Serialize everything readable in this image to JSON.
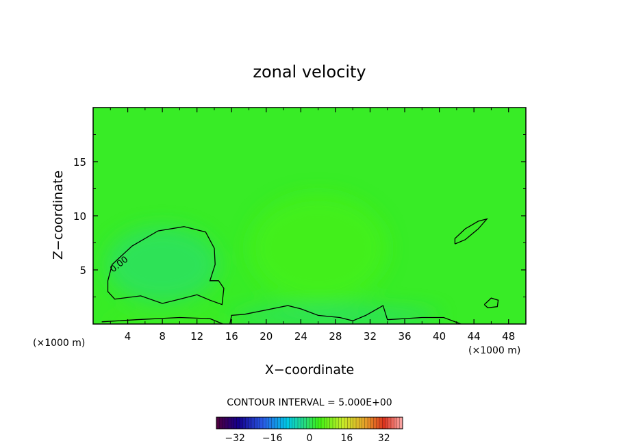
{
  "chart_data": {
    "type": "heatmap",
    "title": "zonal velocity",
    "xlabel": "X−coordinate",
    "ylabel": "Z−coordinate",
    "x_unit_label": "(×1000 m)",
    "z_unit_label": "(×1000 m)",
    "xlim": [
      0,
      50
    ],
    "ylim": [
      0,
      20
    ],
    "x_ticks": [
      4,
      8,
      12,
      16,
      20,
      24,
      28,
      32,
      36,
      40,
      44,
      48
    ],
    "x_tick_labels": [
      "4",
      "8",
      "12",
      "16",
      "20",
      "24",
      "28",
      "32",
      "36",
      "40",
      "44",
      "48"
    ],
    "y_ticks": [
      5,
      10,
      15
    ],
    "y_tick_labels": [
      "5",
      "10",
      "15"
    ],
    "contour_interval_text": "CONTOUR INTERVAL = 5.000E+00",
    "contour_label": "0.00",
    "colorbar": {
      "range": [
        -40,
        40
      ],
      "ticks": [
        -32,
        -16,
        0,
        16,
        32
      ],
      "tick_labels": [
        "−32",
        "−16",
        "0",
        "16",
        "32"
      ]
    },
    "background_value": 3,
    "field_regions": [
      {
        "x": [
          1.5,
          14.5
        ],
        "z": [
          2,
          9
        ],
        "value": -0.5
      },
      {
        "x": [
          16,
          40
        ],
        "z": [
          0,
          1.5
        ],
        "value": -1.5
      },
      {
        "x": [
          1,
          15
        ],
        "z": [
          0,
          0.3
        ],
        "value": 6
      },
      {
        "x": [
          18,
          34
        ],
        "z": [
          2,
          12
        ],
        "value": 4.5
      }
    ],
    "contour_zero_lines": [
      [
        [
          1.7,
          4.0
        ],
        [
          2.2,
          5.5
        ],
        [
          4.5,
          7.2
        ],
        [
          7.5,
          8.6
        ],
        [
          10.5,
          9.0
        ],
        [
          13.0,
          8.5
        ],
        [
          14.0,
          7.0
        ],
        [
          14.1,
          5.5
        ],
        [
          13.5,
          4.0
        ],
        [
          14.5,
          4.0
        ],
        [
          15.1,
          3.3
        ],
        [
          14.9,
          1.8
        ],
        [
          13.5,
          2.2
        ],
        [
          12.0,
          2.7
        ],
        [
          10.0,
          2.3
        ],
        [
          8.0,
          1.9
        ],
        [
          5.5,
          2.6
        ],
        [
          2.5,
          2.3
        ],
        [
          1.7,
          3.0
        ],
        [
          1.7,
          4.0
        ]
      ],
      [
        [
          41.8,
          7.4
        ],
        [
          43.0,
          7.8
        ],
        [
          44.5,
          8.8
        ],
        [
          45.5,
          9.7
        ],
        [
          44.5,
          9.5
        ],
        [
          43.0,
          8.8
        ],
        [
          41.8,
          7.9
        ],
        [
          41.8,
          7.4
        ]
      ],
      [
        [
          45.2,
          1.8
        ],
        [
          46.0,
          2.4
        ],
        [
          46.8,
          2.2
        ],
        [
          46.7,
          1.6
        ],
        [
          45.6,
          1.5
        ],
        [
          45.2,
          1.8
        ]
      ],
      [
        [
          15.8,
          0.0
        ],
        [
          16.0,
          0.8
        ],
        [
          17.5,
          0.9
        ],
        [
          20.0,
          1.3
        ],
        [
          22.5,
          1.7
        ],
        [
          24.0,
          1.4
        ],
        [
          26.0,
          0.8
        ],
        [
          28.5,
          0.6
        ],
        [
          30.0,
          0.3
        ],
        [
          31.5,
          0.8
        ],
        [
          33.5,
          1.7
        ],
        [
          34.0,
          0.4
        ],
        [
          36.0,
          0.5
        ],
        [
          38.0,
          0.6
        ],
        [
          40.5,
          0.6
        ],
        [
          42.5,
          0.0
        ]
      ],
      [
        [
          1.0,
          0.2
        ],
        [
          5.0,
          0.4
        ],
        [
          10.0,
          0.6
        ],
        [
          13.5,
          0.5
        ],
        [
          15.0,
          0.0
        ]
      ]
    ]
  }
}
